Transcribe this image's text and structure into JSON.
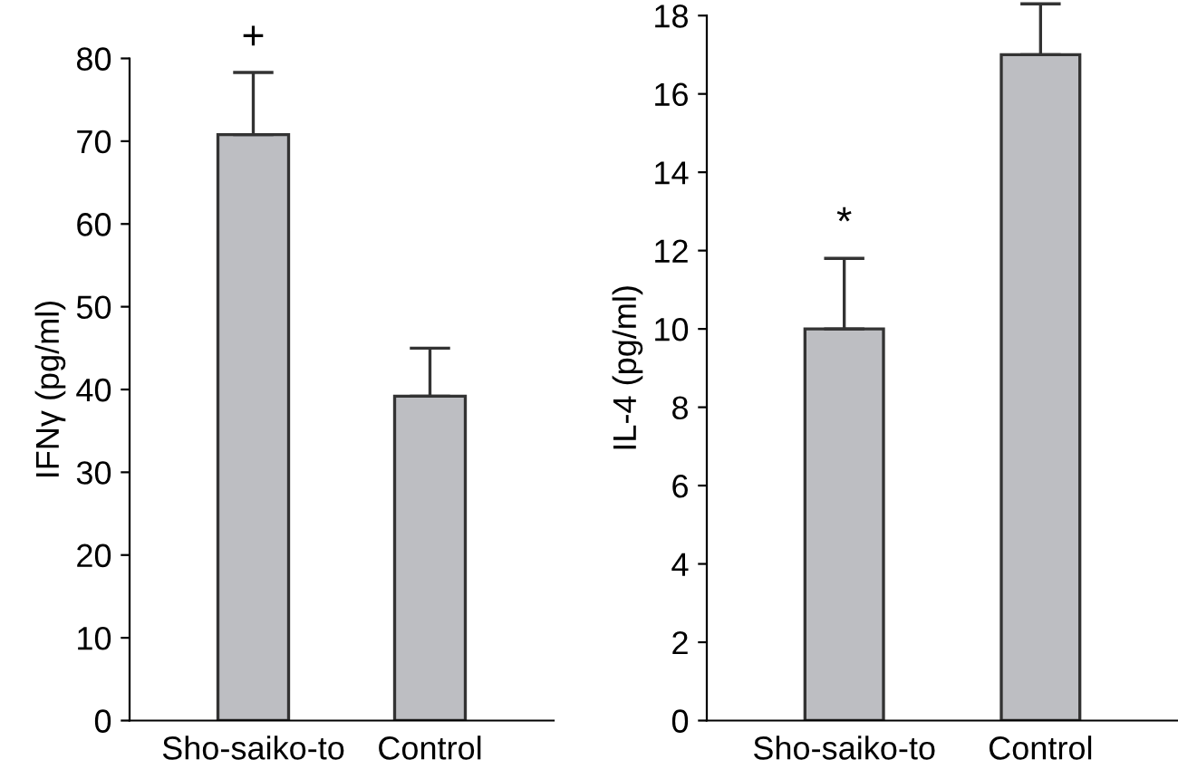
{
  "chart_data": [
    {
      "type": "bar",
      "ylabel": "IFNγ (pg/ml)",
      "categories": [
        "Sho-saiko-to",
        "Control"
      ],
      "values": [
        70.8,
        39.2
      ],
      "errors": [
        [
          70.8,
          78.3
        ],
        [
          39.2,
          45
        ]
      ],
      "color": "#bdbec2",
      "ylim": [
        0,
        80
      ],
      "yticks": [
        0,
        10,
        20,
        30,
        40,
        50,
        60,
        70,
        80
      ],
      "grid": false,
      "legend": false,
      "annotations": [
        "+"
      ]
    },
    {
      "type": "bar",
      "ylabel": "IL-4 (pg/ml)",
      "categories": [
        "Sho-saiko-to",
        "Control"
      ],
      "values": [
        10,
        17
      ],
      "errors": [
        [
          10,
          11.8
        ],
        [
          17,
          18.3
        ]
      ],
      "color": "#bdbec2",
      "ylim": [
        0,
        18
      ],
      "yticks": [
        0,
        2,
        4,
        6,
        8,
        10,
        12,
        14,
        16,
        18
      ],
      "grid": false,
      "legend": false,
      "annotations": [
        "*"
      ]
    }
  ]
}
